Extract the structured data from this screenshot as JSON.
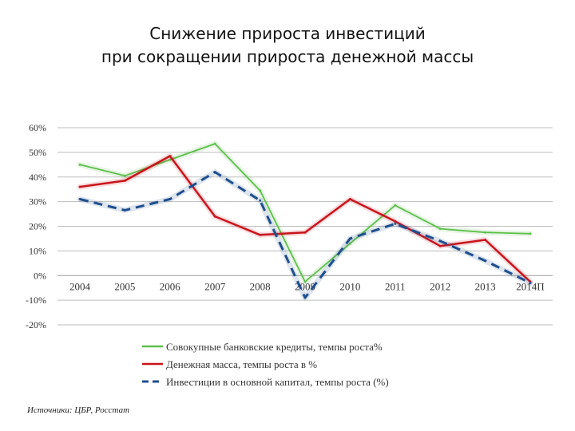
{
  "title_lines": [
    "Снижение прироста инвестиций",
    "при сокращении прироста денежной массы"
  ],
  "source": "Источники: ЦБР, Росстат",
  "chart_data": {
    "type": "line",
    "title": "Снижение прироста инвестиций при сокращении прироста денежной массы",
    "categories": [
      "2004",
      "2005",
      "2006",
      "2007",
      "2008",
      "2009",
      "2010",
      "2011",
      "2012",
      "2013",
      "2014П"
    ],
    "y_ticks": [
      "60%",
      "50%",
      "40%",
      "30%",
      "20%",
      "10%",
      "0%",
      "-10%",
      "-20%"
    ],
    "ylim": [
      -20,
      60
    ],
    "y_unit": "%",
    "grid": true,
    "legend_position": "bottom",
    "series": [
      {
        "name": "Совокупные банковские кредиты, темпы роста%",
        "color": "#5cbf4a",
        "style": "solid",
        "values": [
          45,
          40.5,
          47,
          53.5,
          34.5,
          -2.5,
          13,
          28.5,
          19,
          17.5,
          17
        ]
      },
      {
        "name": "Денежная масса, темпы роста в %",
        "color": "#c8141c",
        "style": "solid",
        "values": [
          36,
          38.5,
          48.5,
          24,
          16.5,
          17.5,
          31,
          22,
          12,
          14.5,
          -2.5
        ]
      },
      {
        "name": "Инвестиции в основной капитал, темпы роста (%)",
        "color": "#1f4e8c",
        "style": "dashed",
        "values": [
          31,
          26.5,
          31,
          42,
          30.5,
          -9,
          15,
          21,
          14,
          6,
          -3
        ]
      }
    ]
  }
}
